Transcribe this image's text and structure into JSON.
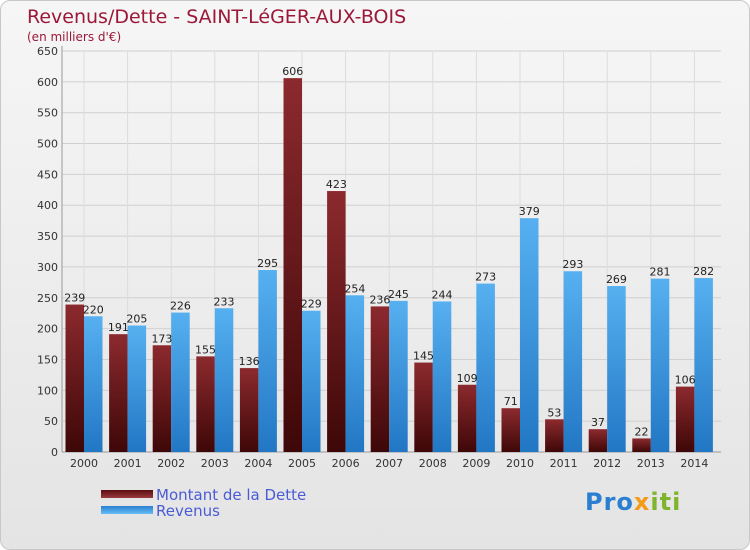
{
  "chart_data": {
    "type": "bar",
    "title": "Revenus/Dette - SAINT-LéGER-AUX-BOIS",
    "subtitle": "(en milliers d'€)",
    "categories": [
      "2000",
      "2001",
      "2002",
      "2003",
      "2004",
      "2005",
      "2006",
      "2007",
      "2008",
      "2009",
      "2010",
      "2011",
      "2012",
      "2013",
      "2014"
    ],
    "series": [
      {
        "name": "Montant de la Dette",
        "color": "#7a1e22",
        "values": [
          239,
          191,
          173,
          155,
          136,
          606,
          423,
          236,
          145,
          109,
          71,
          53,
          37,
          22,
          106
        ]
      },
      {
        "name": "Revenus",
        "color": "#3f9ee3",
        "values": [
          220,
          205,
          226,
          233,
          295,
          229,
          254,
          245,
          244,
          273,
          379,
          293,
          269,
          281,
          282
        ]
      }
    ],
    "ylim": [
      0,
      650
    ],
    "yticks": [
      0,
      50,
      100,
      150,
      200,
      250,
      300,
      350,
      400,
      450,
      500,
      550,
      600,
      650
    ],
    "grid": true,
    "legend_position": "bottom-left"
  },
  "logo": {
    "p1": "Pro",
    "p2": "x",
    "p3": "iti"
  }
}
